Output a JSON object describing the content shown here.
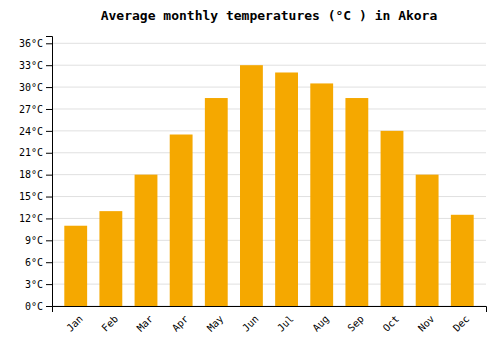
{
  "chart_data": {
    "type": "bar",
    "title": "Average monthly temperatures (°C ) in Akora",
    "categories": [
      "Jan",
      "Feb",
      "Mar",
      "Apr",
      "May",
      "Jun",
      "Jul",
      "Aug",
      "Sep",
      "Oct",
      "Nov",
      "Dec"
    ],
    "values": [
      11,
      13,
      18,
      23.5,
      28.5,
      33,
      32,
      30.5,
      28.5,
      24,
      18,
      12.5
    ],
    "color": "#F5A800",
    "ylim": [
      0,
      37
    ],
    "yticks": [
      {
        "value": 0,
        "label": "0°C"
      },
      {
        "value": 3,
        "label": "3°C"
      },
      {
        "value": 6,
        "label": "6°C"
      },
      {
        "value": 9,
        "label": "9°C"
      },
      {
        "value": 12,
        "label": "12°C"
      },
      {
        "value": 15,
        "label": "15°C"
      },
      {
        "value": 18,
        "label": "18°C"
      },
      {
        "value": 21,
        "label": "21°C"
      },
      {
        "value": 24,
        "label": "24°C"
      },
      {
        "value": 27,
        "label": "27°C"
      },
      {
        "value": 30,
        "label": "30°C"
      },
      {
        "value": 33,
        "label": "33°C"
      },
      {
        "value": 36,
        "label": "36°C"
      }
    ],
    "grid": true
  }
}
